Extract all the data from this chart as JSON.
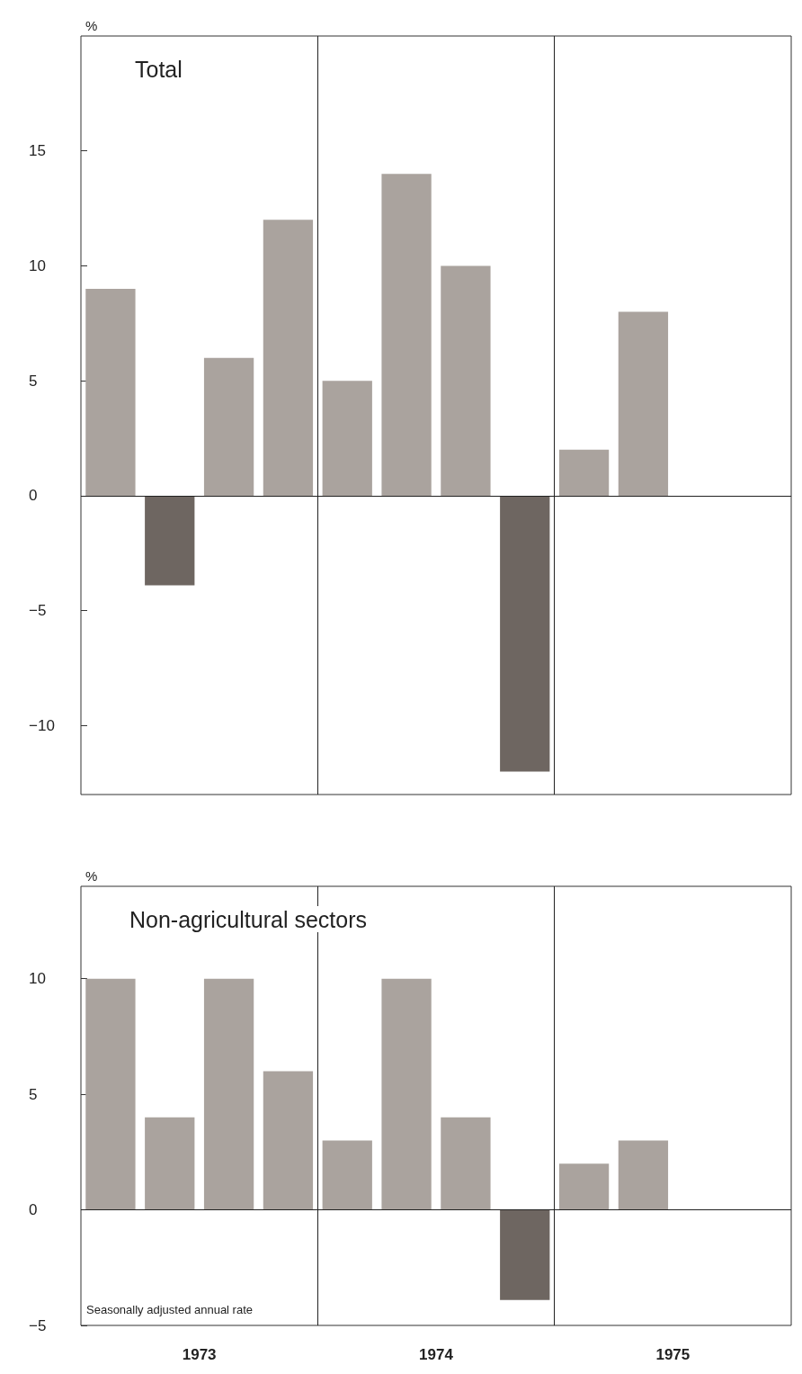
{
  "chart_data": [
    {
      "type": "bar",
      "title": "Total",
      "ylabel": "%",
      "x": [
        1973.125,
        1973.375,
        1973.625,
        1973.875,
        1974.125,
        1974.375,
        1974.625,
        1974.875,
        1975.125,
        1975.375
      ],
      "values": [
        9,
        -3.9,
        6,
        12,
        5,
        14,
        10,
        -12,
        2,
        8
      ],
      "colors": [
        "#aaa39e",
        "#6e6661",
        "#aaa39e",
        "#aaa39e",
        "#aaa39e",
        "#aaa39e",
        "#aaa39e",
        "#6e6661",
        "#aaa39e",
        "#aaa39e"
      ],
      "xlim": [
        1973,
        1976
      ],
      "ylim": [
        -13,
        20
      ],
      "yticks": [
        -10,
        -5,
        0,
        5,
        10,
        15
      ],
      "tick_labels": "y",
      "grid": false,
      "ref_lines": [
        {
          "axis": "x",
          "value": 1974
        },
        {
          "axis": "x",
          "value": 1975
        },
        {
          "axis": "y",
          "value": 0
        }
      ]
    },
    {
      "type": "bar",
      "title": "Non-agricultural sectors",
      "ylabel": "%",
      "x": [
        1973.125,
        1973.375,
        1973.625,
        1973.875,
        1974.125,
        1974.375,
        1974.625,
        1974.875,
        1975.125,
        1975.375
      ],
      "values": [
        10,
        4,
        10,
        6,
        3,
        10,
        4,
        -3.9,
        2,
        3
      ],
      "colors": [
        "#aaa39e",
        "#aaa39e",
        "#aaa39e",
        "#aaa39e",
        "#aaa39e",
        "#aaa39e",
        "#aaa39e",
        "#6e6661",
        "#aaa39e",
        "#aaa39e"
      ],
      "xlim": [
        1973,
        1976
      ],
      "xticks": [
        {
          "value": 1973.5,
          "label": "1973"
        },
        {
          "value": 1974.5,
          "label": "1974"
        },
        {
          "value": 1975.5,
          "label": "1975"
        }
      ],
      "ylim": [
        -5,
        14
      ],
      "yticks": [
        -5,
        0,
        5,
        10
      ],
      "grid": false,
      "ref_lines": [
        {
          "axis": "x",
          "value": 1974
        },
        {
          "axis": "x",
          "value": 1975
        },
        {
          "axis": "y",
          "value": 0
        }
      ],
      "annotations": [
        "Seasonally adjusted annual rate"
      ]
    }
  ]
}
